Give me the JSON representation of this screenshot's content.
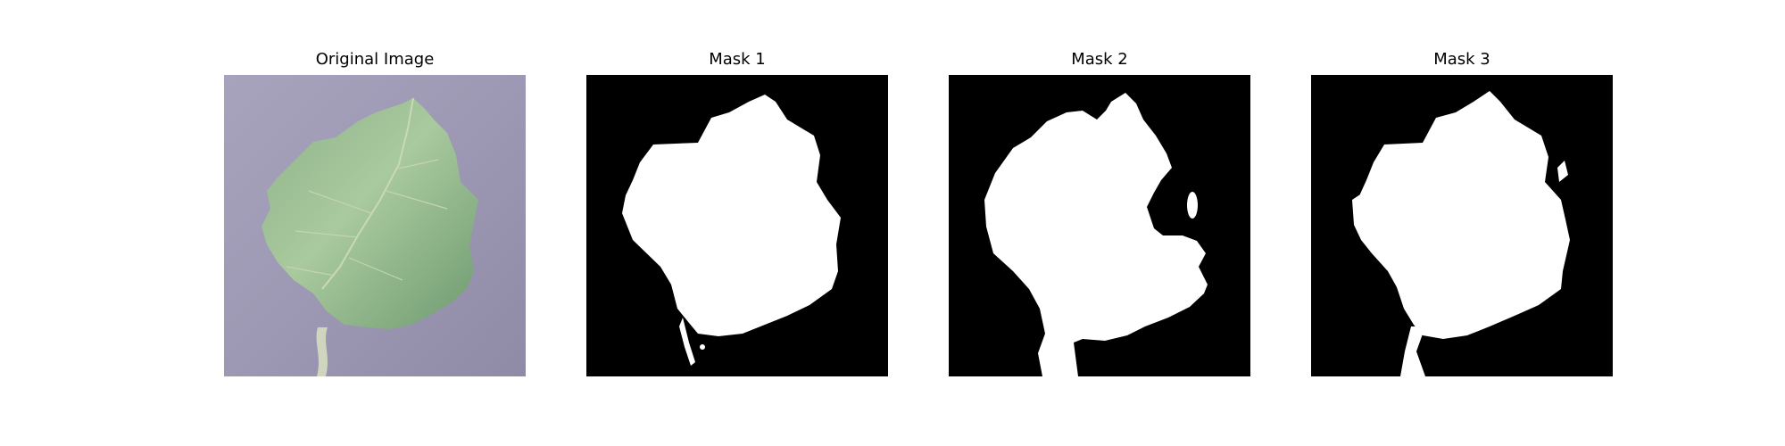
{
  "panels": [
    {
      "title": "Original Image",
      "kind": "photo"
    },
    {
      "title": "Mask 1",
      "kind": "mask"
    },
    {
      "title": "Mask 2",
      "kind": "mask"
    },
    {
      "title": "Mask 3",
      "kind": "mask"
    }
  ],
  "colors": {
    "background": "#ffffff",
    "mask_background": "#000000",
    "mask_foreground": "#ffffff",
    "photo_background": "#9d98b3",
    "leaf_light": "#a9c99e",
    "leaf_dark": "#6f9a70",
    "stem": "#cfd6bd"
  }
}
